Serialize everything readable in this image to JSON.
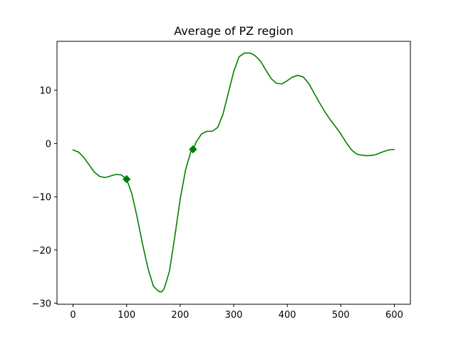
{
  "chart_data": {
    "type": "line",
    "title": "Average of PZ region",
    "xlabel": "",
    "ylabel": "",
    "xlim": [
      -30,
      630
    ],
    "ylim": [
      -30.2,
      19.2
    ],
    "grid": false,
    "x_ticks": [
      0,
      100,
      200,
      300,
      400,
      500,
      600
    ],
    "x_tick_labels": [
      "0",
      "100",
      "200",
      "300",
      "400",
      "500",
      "600"
    ],
    "y_ticks": [
      -30,
      -20,
      -10,
      0,
      10
    ],
    "y_tick_labels": [
      "−30",
      "−20",
      "−10",
      "0",
      "10"
    ],
    "colors": {
      "line": "#008000",
      "marker": "#008000",
      "axes": "#000000",
      "background": "#ffffff"
    },
    "series": [
      {
        "x": [
          0,
          10,
          20,
          30,
          40,
          50,
          60,
          70,
          80,
          90,
          100,
          110,
          120,
          130,
          140,
          150,
          160,
          165,
          170,
          180,
          190,
          200,
          210,
          220,
          225,
          230,
          240,
          250,
          260,
          270,
          280,
          290,
          300,
          310,
          320,
          330,
          335,
          340,
          350,
          360,
          370,
          380,
          390,
          400,
          410,
          420,
          430,
          440,
          450,
          460,
          470,
          480,
          490,
          500,
          510,
          520,
          530,
          540,
          550,
          560,
          565,
          570,
          580,
          590,
          600
        ],
        "y": [
          -1.2,
          -1.6,
          -2.6,
          -4.0,
          -5.4,
          -6.2,
          -6.4,
          -6.1,
          -5.8,
          -5.9,
          -6.7,
          -9.5,
          -14.0,
          -19.0,
          -23.5,
          -26.8,
          -27.8,
          -27.9,
          -27.3,
          -24.0,
          -17.5,
          -10.5,
          -5.0,
          -1.5,
          -1.0,
          0.3,
          1.8,
          2.3,
          2.3,
          3.0,
          5.5,
          9.5,
          13.5,
          16.3,
          17.0,
          17.0,
          16.8,
          16.5,
          15.5,
          13.8,
          12.2,
          11.3,
          11.2,
          11.8,
          12.5,
          12.8,
          12.5,
          11.3,
          9.5,
          7.7,
          6.0,
          4.5,
          3.2,
          1.8,
          0.2,
          -1.2,
          -2.0,
          -2.2,
          -2.3,
          -2.2,
          -2.1,
          -1.9,
          -1.5,
          -1.2,
          -1.1
        ]
      }
    ],
    "markers": [
      {
        "x": 100,
        "y": -6.7
      },
      {
        "x": 224,
        "y": -1.1
      }
    ]
  }
}
